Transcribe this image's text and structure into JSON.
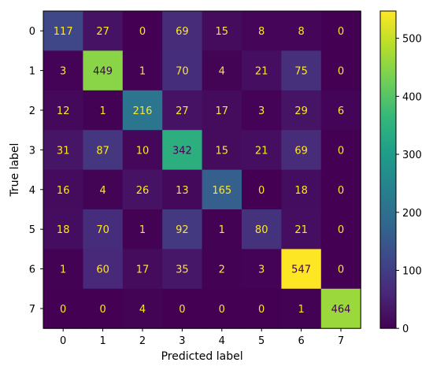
{
  "chart_data": {
    "type": "heatmap",
    "title": "",
    "xlabel": "Predicted label",
    "ylabel": "True label",
    "x_categories": [
      "0",
      "1",
      "2",
      "3",
      "4",
      "5",
      "6",
      "7"
    ],
    "y_categories": [
      "0",
      "1",
      "2",
      "3",
      "4",
      "5",
      "6",
      "7"
    ],
    "values": [
      [
        117,
        27,
        0,
        69,
        15,
        8,
        8,
        0
      ],
      [
        3,
        449,
        1,
        70,
        4,
        21,
        75,
        0
      ],
      [
        12,
        1,
        216,
        27,
        17,
        3,
        29,
        6
      ],
      [
        31,
        87,
        10,
        342,
        15,
        21,
        69,
        0
      ],
      [
        16,
        4,
        26,
        13,
        165,
        0,
        18,
        0
      ],
      [
        18,
        70,
        1,
        92,
        1,
        80,
        21,
        0
      ],
      [
        1,
        60,
        17,
        35,
        2,
        3,
        547,
        0
      ],
      [
        0,
        0,
        4,
        0,
        0,
        0,
        1,
        464
      ]
    ],
    "colormap": "viridis",
    "color_range": [
      0,
      547
    ],
    "colorbar_ticks": [
      "0",
      "100",
      "200",
      "300",
      "400",
      "500"
    ],
    "colorbar_tick_values": [
      0,
      100,
      200,
      300,
      400,
      500
    ],
    "text_color_light": "#fde725",
    "text_color_dark": "#440154",
    "grid": false
  }
}
